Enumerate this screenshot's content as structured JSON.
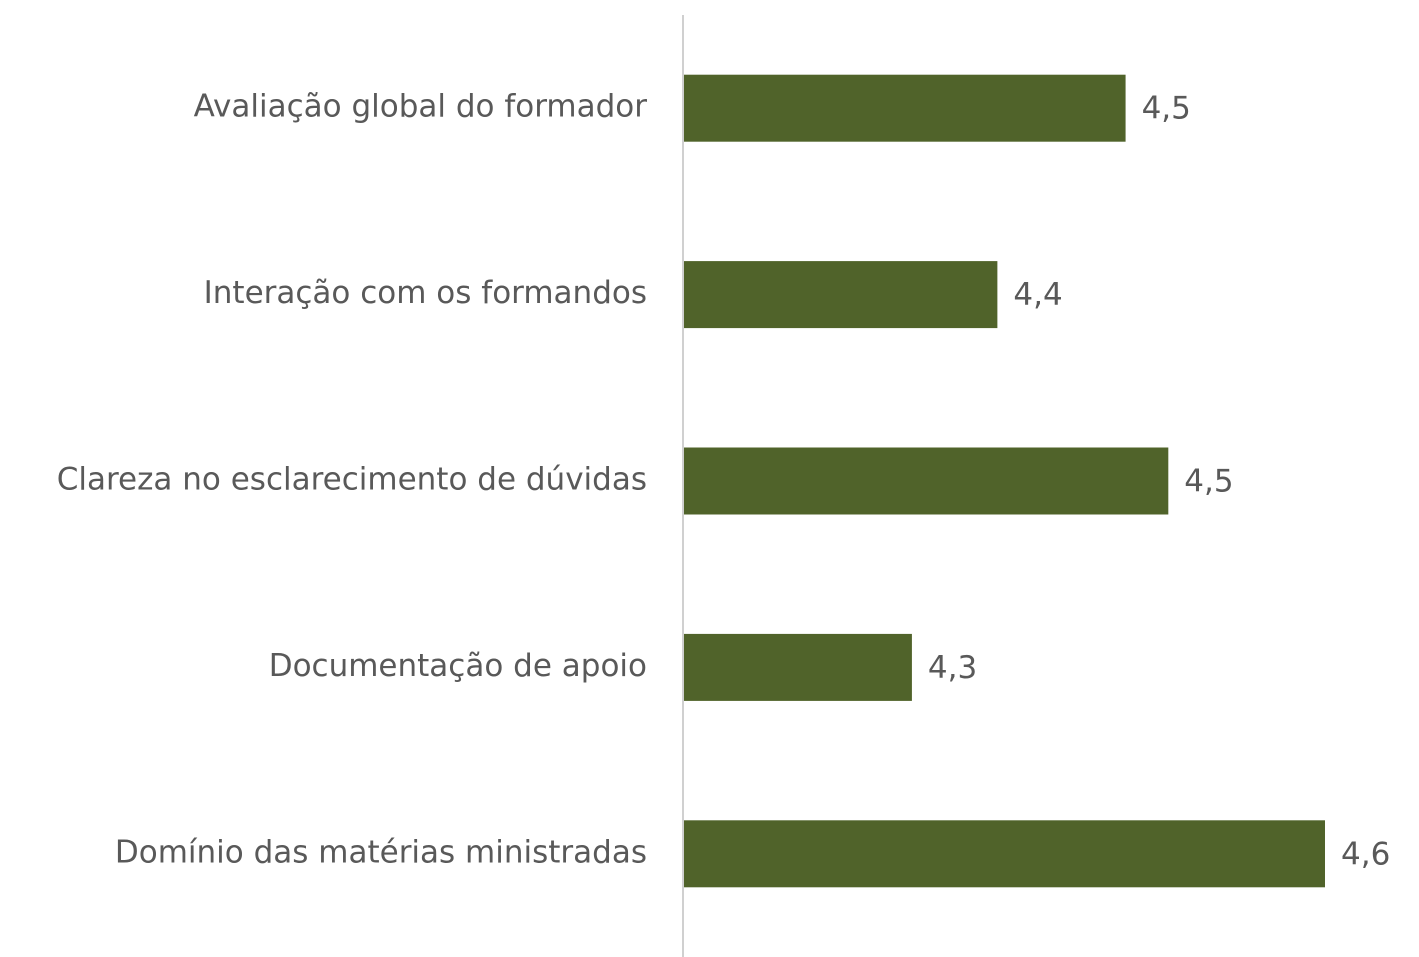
{
  "chart_data": {
    "type": "bar",
    "orientation": "horizontal",
    "categories": [
      "Avaliação global do formador",
      "Interação com os formandos",
      "Clareza no esclarecimento de dúvidas",
      "Documentação de apoio",
      "Domínio das matérias ministradas"
    ],
    "values": [
      4.46,
      4.37,
      4.49,
      4.31,
      4.6
    ],
    "value_labels": [
      "4,5",
      "4,4",
      "4,5",
      "4,3",
      "4,6"
    ],
    "color": "#50632a",
    "xlim": [
      4.15,
      4.6
    ]
  }
}
